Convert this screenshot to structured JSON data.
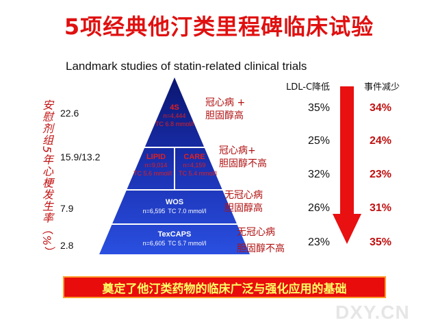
{
  "title": "5项经典他汀类里程碑临床试验",
  "subtitle": "Landmark studies of statin-related clinical trials",
  "y_axis_label": "安慰剂组5年心梗发生率（%）",
  "columns": {
    "ldl": "LDL-C降低",
    "events": "事件减少"
  },
  "rows": [
    {
      "y_value": "22.6",
      "trials": [
        {
          "name": "4S",
          "n": "n=4,444",
          "tc": "TC 6.8 mmol/l"
        }
      ],
      "population": [
        "冠心病 +",
        "胆固醇高"
      ],
      "ldl_reduction": "35%",
      "event_reduction": "34%"
    },
    {
      "y_value": "15.9/13.2",
      "trials": [
        {
          "name": "LIPID",
          "n": "n=9,014",
          "tc": "TC 5.6 mmol/l"
        },
        {
          "name": "CARE",
          "n": "n=4,159",
          "tc": "TC 5.4 mmol/l"
        }
      ],
      "population": [
        "冠心病+",
        "胆固醇不高"
      ],
      "ldl_reduction": "25%",
      "event_reduction": "24%"
    },
    {
      "y_value": "",
      "trials": [],
      "population": [],
      "ldl_reduction": "32%",
      "event_reduction": "23%"
    },
    {
      "y_value": "7.9",
      "trials": [
        {
          "name": "WOS",
          "n": "n=6,595",
          "tc": "TC 7.0 mmol/l"
        }
      ],
      "population": [
        "无冠心病",
        "胆固醇高"
      ],
      "ldl_reduction": "26%",
      "event_reduction": "31%"
    },
    {
      "y_value": "2.8",
      "trials": [
        {
          "name": "TexCAPS",
          "n": "n=6,605",
          "tc": "TC 5.7 mmol/l"
        }
      ],
      "population": [
        "无冠心病",
        "胆固醇不高"
      ],
      "ldl_reduction": "23%",
      "event_reduction": "35%"
    }
  ],
  "banner": "奠定了他汀类药物的临床广泛与强化应用的基础",
  "watermark": "DXY.CN",
  "colors": {
    "title": "#e01010",
    "pyramid_dark": "#0b1670",
    "pyramid_light": "#2a4fe0",
    "trial_name_top": "#e02020",
    "trial_name_bottom": "#ffffff",
    "arrow": "#e81010",
    "banner_bg": "#e80c0c",
    "banner_text": "#ffff66"
  }
}
